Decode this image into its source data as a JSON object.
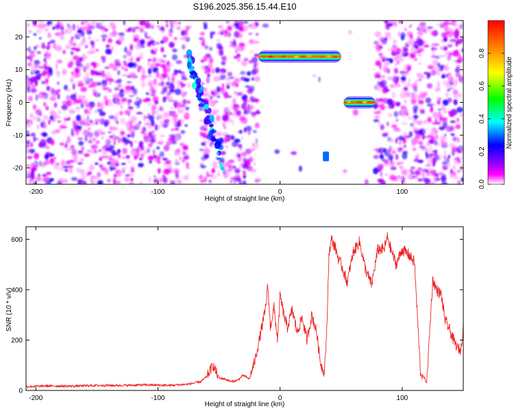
{
  "title": "S196.2025.356.15.44.E10",
  "chart_data": [
    {
      "type": "heatmap",
      "xlabel": "Height of straight line (km)",
      "ylabel": "Frequency (Hz)",
      "xlim": [
        -208,
        150
      ],
      "ylim": [
        -25,
        25
      ],
      "xticks": [
        -200,
        -100,
        0,
        100
      ],
      "yticks": [
        -20,
        -10,
        0,
        10,
        20
      ],
      "colorbar": {
        "label": "Normalized spectral amplitude",
        "range": [
          0,
          1
        ],
        "ticks": [
          0.0,
          0.2,
          0.4,
          0.6,
          0.8
        ],
        "tick_labels": [
          "0.0",
          "0.2",
          "0.4",
          "0.6",
          "0.8"
        ],
        "colormap": [
          "#ffffff",
          "#ff00ff",
          "#8000ff",
          "#0000ff",
          "#00ffff",
          "#00ff00",
          "#ffff00",
          "#ff8000",
          "#ff0000"
        ]
      },
      "features": [
        {
          "name": "diagonal-streak",
          "x_range": [
            -75,
            -47
          ],
          "freq_range": [
            -18,
            14
          ],
          "level": 0.3
        },
        {
          "name": "narrow-band-high",
          "x_range": [
            -18,
            50
          ],
          "freq": 14,
          "level": 0.85
        },
        {
          "name": "narrow-band-low",
          "x_range": [
            52,
            78
          ],
          "freq": 0,
          "level": 0.9
        },
        {
          "name": "faint-line",
          "x_range": [
            35,
            40
          ],
          "freq_range": [
            -18,
            -15
          ],
          "level": 0.3
        }
      ]
    },
    {
      "type": "line",
      "xlabel": "Height of straight line (km)",
      "ylabel": "SNR (10 * v/v)",
      "xlim": [
        -208,
        150
      ],
      "ylim": [
        0,
        650
      ],
      "xticks": [
        -200,
        -100,
        0,
        100
      ],
      "yticks": [
        0,
        200,
        400,
        600
      ],
      "series": [
        {
          "name": "SNR",
          "color": "#ee2222",
          "x": [
            -208,
            -190,
            -170,
            -150,
            -130,
            -110,
            -90,
            -75,
            -65,
            -60,
            -55,
            -50,
            -45,
            -40,
            -35,
            -30,
            -25,
            -20,
            -15,
            -12,
            -10,
            -8,
            -5,
            -2,
            0,
            3,
            6,
            10,
            14,
            18,
            22,
            26,
            30,
            33,
            36,
            38,
            40,
            42,
            45,
            48,
            50,
            55,
            60,
            65,
            70,
            75,
            80,
            85,
            88,
            90,
            95,
            100,
            105,
            110,
            115,
            118,
            120,
            125,
            128,
            132,
            135,
            138,
            142,
            145,
            148,
            150
          ],
          "values": [
            15,
            18,
            17,
            20,
            20,
            22,
            20,
            25,
            35,
            55,
            100,
            50,
            45,
            35,
            40,
            60,
            45,
            130,
            250,
            320,
            420,
            250,
            330,
            200,
            380,
            300,
            250,
            320,
            230,
            290,
            200,
            300,
            230,
            110,
            70,
            200,
            540,
            600,
            570,
            520,
            500,
            430,
            550,
            590,
            480,
            420,
            560,
            560,
            610,
            570,
            500,
            560,
            540,
            510,
            70,
            50,
            30,
            440,
            400,
            380,
            280,
            250,
            200,
            170,
            160,
            260
          ]
        }
      ]
    }
  ]
}
